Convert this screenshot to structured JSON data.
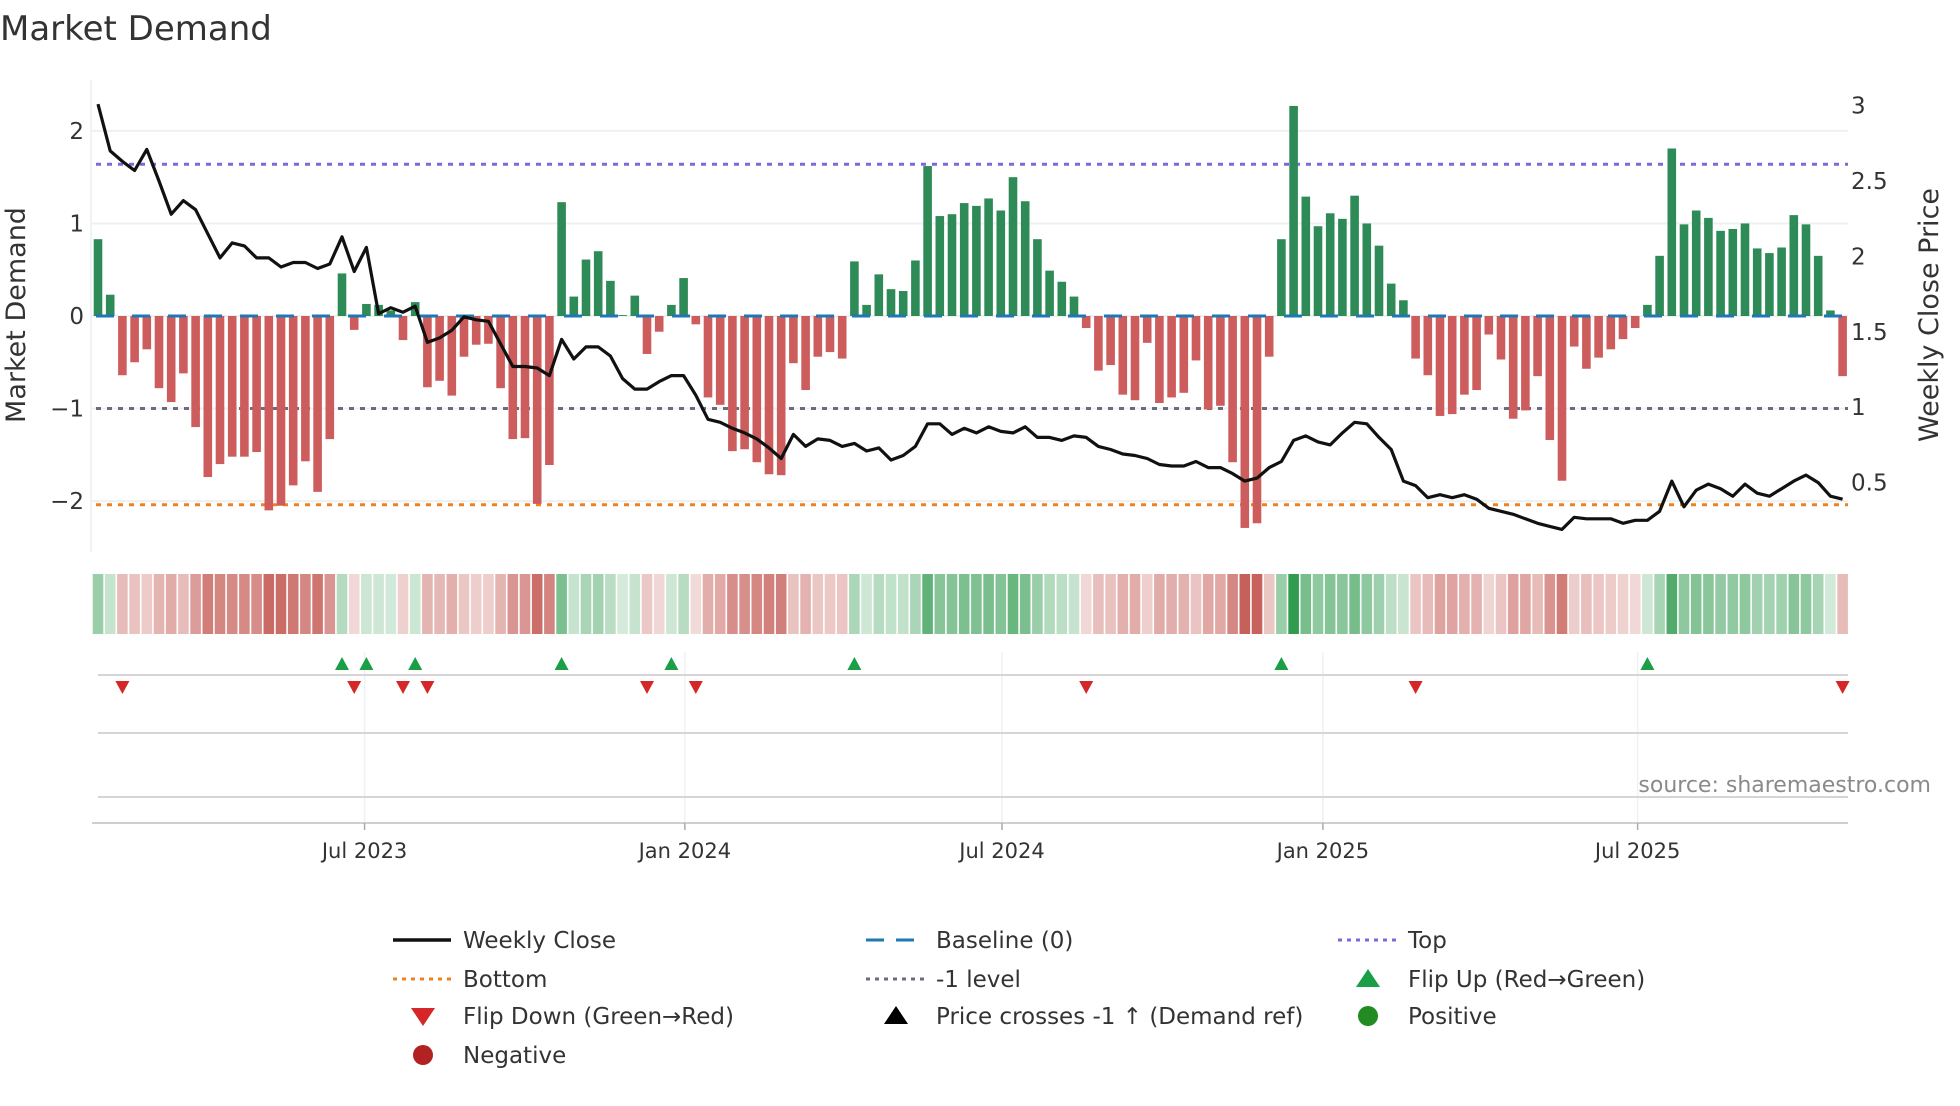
{
  "chart_data": {
    "type": "bar",
    "title": "Market Demand",
    "ylabel": "Market Demand",
    "y2label": "Weekly Close Price",
    "ylim": [
      -2.55,
      2.55
    ],
    "y2lim": [
      0.04,
      3.17
    ],
    "yticks": [
      {
        "v": 2,
        "label": "2"
      },
      {
        "v": 1,
        "label": "1"
      },
      {
        "v": 0,
        "label": "0"
      },
      {
        "v": -1,
        "label": "−1"
      },
      {
        "v": -2,
        "label": "−2"
      }
    ],
    "y2ticks": [
      {
        "v": 3,
        "label": "3"
      },
      {
        "v": 2.5,
        "label": "2.5"
      },
      {
        "v": 2,
        "label": "2"
      },
      {
        "v": 1.5,
        "label": "1.5"
      },
      {
        "v": 1,
        "label": "1"
      },
      {
        "v": 0.5,
        "label": "0.5"
      }
    ],
    "x_ticks": [
      {
        "week": 21.85,
        "label": "Jul 2023"
      },
      {
        "week": 48.1,
        "label": "Jan 2024"
      },
      {
        "week": 74.1,
        "label": "Jul 2024"
      },
      {
        "week": 100.4,
        "label": "Jan 2025"
      },
      {
        "week": 126.2,
        "label": "Jul 2025"
      }
    ],
    "grid": true,
    "levels": {
      "top": 1.64,
      "bottom": -2.04,
      "minus_one": -1,
      "baseline": 0
    },
    "demand": [
      0.83,
      0.23,
      -0.64,
      -0.5,
      -0.36,
      -0.78,
      -0.93,
      -0.62,
      -1.2,
      -1.74,
      -1.6,
      -1.52,
      -1.52,
      -1.47,
      -2.1,
      -2.05,
      -1.83,
      -1.57,
      -1.9,
      -1.33,
      0.46,
      -0.15,
      0.13,
      0.12,
      0.06,
      -0.26,
      0.15,
      -0.77,
      -0.7,
      -0.86,
      -0.44,
      -0.31,
      -0.3,
      -0.78,
      -1.33,
      -1.32,
      -2.03,
      -1.61,
      1.23,
      0.21,
      0.61,
      0.7,
      0.38,
      0.01,
      0.22,
      -0.41,
      -0.17,
      0.12,
      0.41,
      -0.09,
      -0.88,
      -0.96,
      -1.46,
      -1.44,
      -1.58,
      -1.71,
      -1.72,
      -0.51,
      -0.8,
      -0.44,
      -0.39,
      -0.46,
      0.59,
      0.12,
      0.45,
      0.29,
      0.27,
      0.6,
      1.62,
      1.08,
      1.1,
      1.22,
      1.19,
      1.27,
      1.14,
      1.5,
      1.24,
      0.83,
      0.49,
      0.37,
      0.21,
      -0.13,
      -0.59,
      -0.53,
      -0.85,
      -0.91,
      -0.29,
      -0.94,
      -0.88,
      -0.83,
      -0.48,
      -1.01,
      -0.97,
      -1.58,
      -2.29,
      -2.24,
      -0.44,
      0.83,
      2.27,
      1.29,
      0.97,
      1.11,
      1.05,
      1.3,
      1.0,
      0.76,
      0.35,
      0.17,
      -0.46,
      -0.64,
      -1.08,
      -1.06,
      -0.85,
      -0.8,
      -0.2,
      -0.47,
      -1.11,
      -1.02,
      -0.65,
      -1.34,
      -1.78,
      -0.33,
      -0.57,
      -0.45,
      -0.36,
      -0.25,
      -0.13,
      0.12,
      0.65,
      1.81,
      0.99,
      1.14,
      1.06,
      0.92,
      0.94,
      1.0,
      0.73,
      0.68,
      0.74,
      1.09,
      0.99,
      0.65,
      0.06,
      -0.65
    ],
    "weekly_close": [
      3.01,
      2.7,
      2.63,
      2.57,
      2.71,
      2.5,
      2.28,
      2.37,
      2.31,
      2.15,
      1.99,
      2.09,
      2.07,
      1.99,
      1.99,
      1.93,
      1.96,
      1.96,
      1.92,
      1.95,
      2.13,
      1.9,
      2.06,
      1.62,
      1.66,
      1.63,
      1.67,
      1.43,
      1.46,
      1.51,
      1.6,
      1.58,
      1.57,
      1.42,
      1.27,
      1.27,
      1.26,
      1.21,
      1.45,
      1.32,
      1.4,
      1.4,
      1.34,
      1.19,
      1.12,
      1.12,
      1.17,
      1.21,
      1.21,
      1.08,
      0.92,
      0.9,
      0.86,
      0.83,
      0.79,
      0.73,
      0.66,
      0.82,
      0.74,
      0.79,
      0.78,
      0.74,
      0.76,
      0.71,
      0.73,
      0.65,
      0.68,
      0.74,
      0.89,
      0.89,
      0.82,
      0.86,
      0.83,
      0.87,
      0.84,
      0.83,
      0.87,
      0.8,
      0.8,
      0.78,
      0.81,
      0.8,
      0.74,
      0.72,
      0.69,
      0.68,
      0.66,
      0.62,
      0.61,
      0.61,
      0.64,
      0.6,
      0.6,
      0.56,
      0.51,
      0.53,
      0.6,
      0.64,
      0.78,
      0.81,
      0.77,
      0.75,
      0.83,
      0.9,
      0.89,
      0.8,
      0.72,
      0.51,
      0.48,
      0.4,
      0.42,
      0.4,
      0.42,
      0.39,
      0.33,
      0.31,
      0.29,
      0.26,
      0.23,
      0.21,
      0.19,
      0.27,
      0.26,
      0.26,
      0.26,
      0.23,
      0.25,
      0.25,
      0.31,
      0.51,
      0.34,
      0.45,
      0.49,
      0.46,
      0.41,
      0.49,
      0.43,
      0.41,
      0.46,
      0.51,
      0.55,
      0.5,
      0.41,
      0.39
    ],
    "legend": {
      "placement": "bottom",
      "items": [
        {
          "label": "Weekly Close",
          "kind": "line-solid",
          "color": "#111111"
        },
        {
          "label": "Baseline (0)",
          "kind": "line-dash",
          "color": "#1f77b4"
        },
        {
          "label": "Top",
          "kind": "line-dot",
          "color": "#7b68d9"
        },
        {
          "label": "Bottom",
          "kind": "line-dot",
          "color": "#f0821e"
        },
        {
          "label": "-1 level",
          "kind": "line-dot",
          "color": "#6b6b7b"
        },
        {
          "label": "Flip Up (Red→Green)",
          "kind": "tri-up",
          "color": "#1a9e46"
        },
        {
          "label": "Flip Down (Green→Red)",
          "kind": "tri-down",
          "color": "#d62728"
        },
        {
          "label": "Price crosses -1 ↑ (Demand ref)",
          "kind": "tri-up",
          "color": "#000000"
        },
        {
          "label": "Positive",
          "kind": "dot",
          "color": "#228b22"
        },
        {
          "label": "Negative",
          "kind": "dot",
          "color": "#b22222"
        }
      ]
    },
    "source": "source: sharemaestro.com"
  },
  "colors": {
    "positive": "#2e8b57",
    "negative": "#cd5c5c",
    "heat_pos": "#2f9a4e",
    "heat_neg": "#c65f59",
    "flip_up": "#1a9e46",
    "flip_down": "#d62728",
    "price": "#111111"
  }
}
